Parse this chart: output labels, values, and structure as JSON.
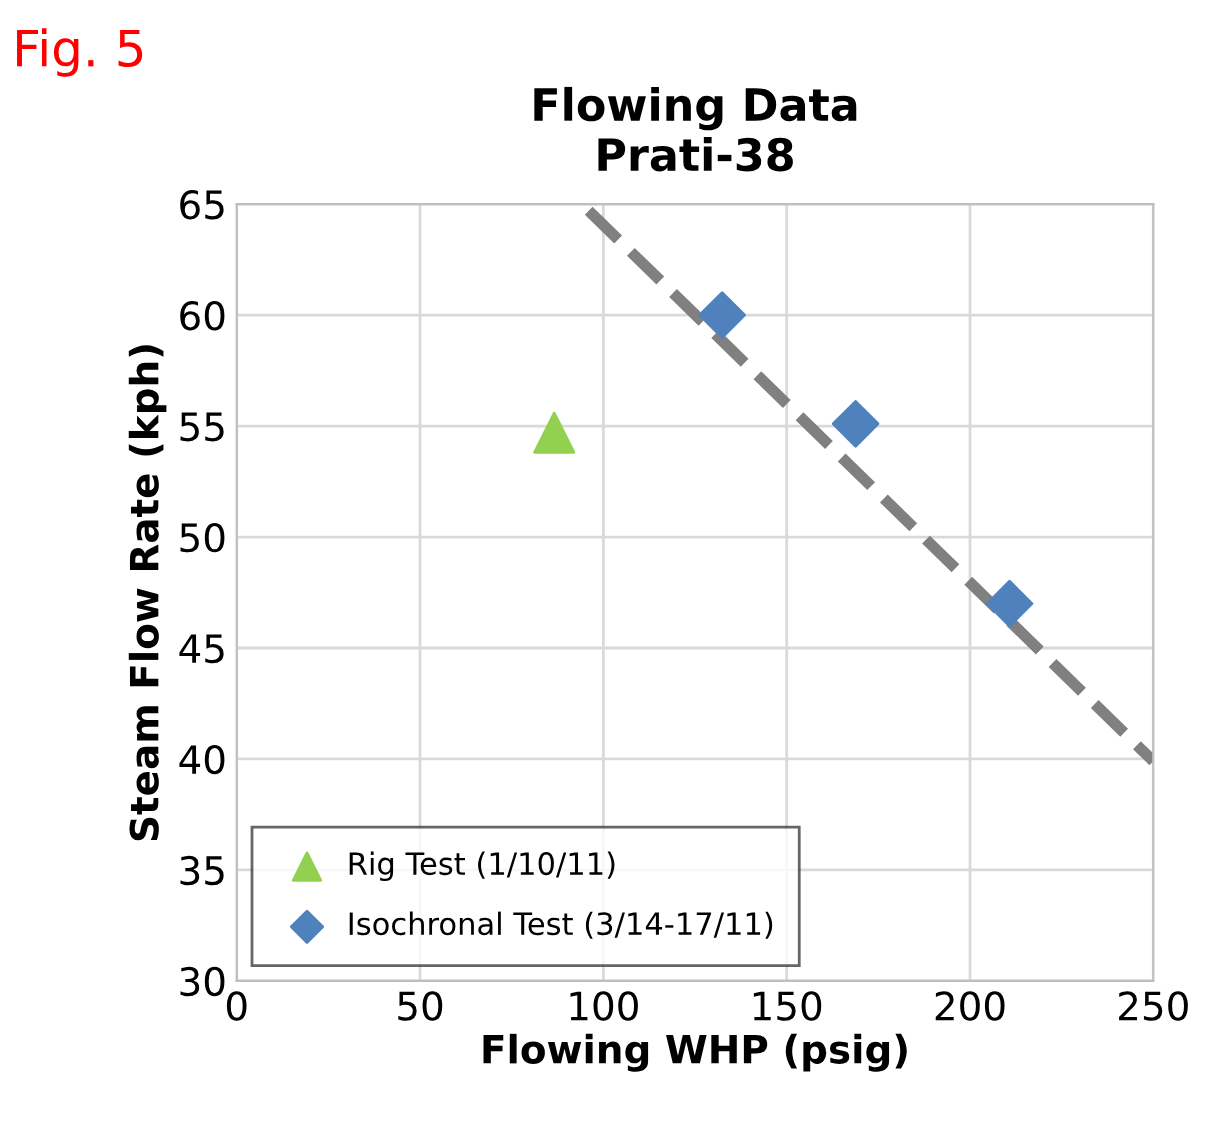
{
  "chart_data": {
    "type": "scatter",
    "title": "Flowing Data\nPrati-38",
    "xlabel": "Flowing WHP (psig)",
    "ylabel": "Steam Flow Rate (kph)",
    "annotations": [
      "Fig. 5"
    ],
    "xlim": [
      0,
      250
    ],
    "xticks": [
      0,
      50,
      100,
      150,
      200,
      250
    ],
    "ylim": [
      30,
      65
    ],
    "yticks": [
      30,
      35,
      40,
      45,
      50,
      55,
      60,
      65
    ],
    "grid": true,
    "legend": "bottom left",
    "series": [
      {
        "name": "Rig Test (1/10/11)",
        "color": "#92d050",
        "marker": "triangle",
        "x": [
          86.6
        ],
        "values": [
          54.7
        ]
      },
      {
        "name": "Isochronal Test (3/14-17/11)",
        "color": "#4f81bd",
        "marker": "diamond",
        "x": [
          132.4,
          168.8,
          210.8
        ],
        "values": [
          60.0,
          55.1,
          47.0
        ]
      },
      {
        "type": "line",
        "color": "#808080",
        "line_style": "dashed",
        "marker": "none",
        "x": [
          96,
          250
        ],
        "values": [
          64.7,
          39.9
        ]
      }
    ]
  }
}
